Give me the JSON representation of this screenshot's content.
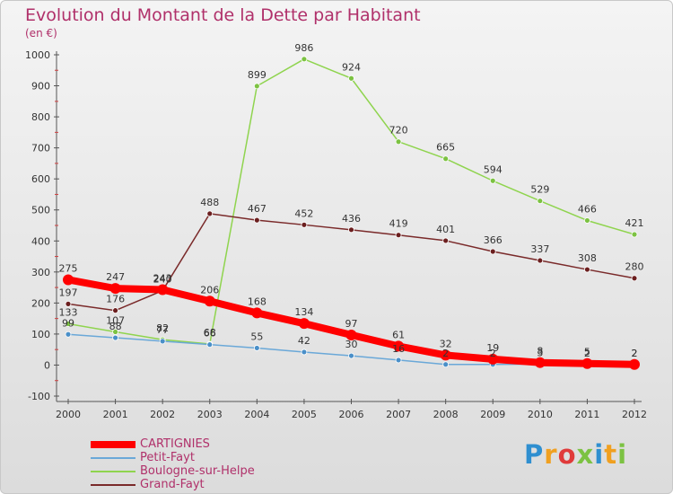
{
  "header": {
    "title": "Evolution du Montant de la Dette par Habitant",
    "subtitle": "(en €)"
  },
  "logo": {
    "text": "Proxiti",
    "letters": [
      {
        "char": "P",
        "color": "#2f8fd0"
      },
      {
        "char": "r",
        "color": "#f0a020"
      },
      {
        "char": "o",
        "color": "#e03a3a"
      },
      {
        "char": "x",
        "color": "#7cc242"
      },
      {
        "char": "i",
        "color": "#2f8fd0"
      },
      {
        "char": "t",
        "color": "#f0a020"
      },
      {
        "char": "i",
        "color": "#7cc242"
      }
    ]
  },
  "chart_data": {
    "type": "line",
    "title": "Evolution du Montant de la Dette par Habitant",
    "subtitle": "(en €)",
    "x": [
      2000,
      2001,
      2002,
      2003,
      2004,
      2005,
      2006,
      2007,
      2008,
      2009,
      2010,
      2011,
      2012
    ],
    "ylim": [
      -100,
      1000
    ],
    "yticks": [
      -100,
      0,
      100,
      200,
      300,
      400,
      500,
      600,
      700,
      800,
      900,
      1000
    ],
    "grid": false,
    "legend_position": "bottom-left",
    "series": [
      {
        "name": "Boulogne-sur-Helpe",
        "color": "#8fd44e",
        "marker_color": "#7cc242",
        "values": [
          133,
          107,
          82,
          68,
          899,
          986,
          924,
          720,
          665,
          594,
          529,
          466,
          421
        ],
        "labels": [
          "133",
          "107",
          "82",
          "68",
          "899",
          "986",
          "924",
          "720",
          "665",
          "594",
          "529",
          "466",
          "421"
        ]
      },
      {
        "name": "Grand-Fayt",
        "color": "#7a2a2a",
        "marker_color": "#6b1f1f",
        "values": [
          197,
          176,
          240,
          488,
          467,
          452,
          436,
          419,
          401,
          366,
          337,
          308,
          280
        ],
        "labels": [
          "197",
          "176",
          "240",
          "488",
          "467",
          "452",
          "436",
          "419",
          "401",
          "366",
          "337",
          "308",
          "280"
        ]
      },
      {
        "name": "Petit-Fayt",
        "color": "#6aa8d8",
        "marker_color": "#4a8fc8",
        "values": [
          99,
          88,
          77,
          66,
          55,
          42,
          30,
          16,
          2,
          2,
          3,
          2,
          2
        ],
        "labels": [
          "99",
          "88",
          "77",
          "66",
          "55",
          "42",
          "30",
          "16",
          "2",
          "2",
          "3",
          "2",
          "2"
        ]
      },
      {
        "name": "CARTIGNIES",
        "color": "#ff0000",
        "marker_color": "#ff0000",
        "values": [
          275,
          247,
          243,
          206,
          168,
          134,
          97,
          61,
          32,
          19,
          8,
          5,
          2
        ],
        "labels": [
          "275",
          "247",
          "243",
          "206",
          "168",
          "134",
          "97",
          "61",
          "32",
          "19",
          "8",
          "5",
          "2"
        ]
      }
    ],
    "legend": [
      {
        "name": "CARTIGNIES",
        "color": "#ff0000",
        "width": 8
      },
      {
        "name": "Petit-Fayt",
        "color": "#6aa8d8",
        "width": 2
      },
      {
        "name": "Boulogne-sur-Helpe",
        "color": "#8fd44e",
        "width": 2
      },
      {
        "name": "Grand-Fayt",
        "color": "#7a2a2a",
        "width": 2
      }
    ]
  }
}
